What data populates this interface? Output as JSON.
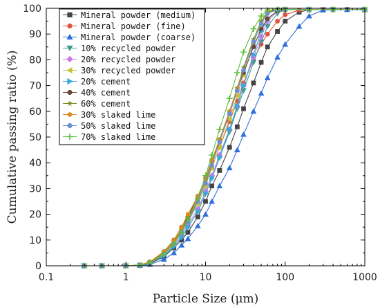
{
  "chart_data": {
    "type": "scatter",
    "title": "",
    "xlabel": "Particle Size (μm)",
    "ylabel": "Cumulative passing ratio (%)",
    "xscale": "log",
    "xlim": [
      0.1,
      1000
    ],
    "ylim": [
      0,
      100
    ],
    "x_ticks": [
      "0.1",
      "1",
      "10",
      "100",
      "1000"
    ],
    "y_ticks": [
      "0",
      "10",
      "20",
      "30",
      "40",
      "50",
      "60",
      "70",
      "80",
      "90",
      "100"
    ],
    "grid": false,
    "legend_position": "top-left",
    "series": [
      {
        "name": "Mineral powder (medium)",
        "color": "#444444",
        "marker": "square",
        "points": [
          [
            0.3,
            0
          ],
          [
            0.5,
            0
          ],
          [
            1,
            0
          ],
          [
            1.5,
            0.2
          ],
          [
            2,
            0.8
          ],
          [
            3,
            3.5
          ],
          [
            4,
            7
          ],
          [
            5,
            10
          ],
          [
            6,
            13
          ],
          [
            8,
            19
          ],
          [
            10,
            25
          ],
          [
            12,
            31
          ],
          [
            15,
            37
          ],
          [
            20,
            46
          ],
          [
            25,
            54
          ],
          [
            30,
            61
          ],
          [
            40,
            71
          ],
          [
            50,
            79
          ],
          [
            60,
            85
          ],
          [
            80,
            91
          ],
          [
            100,
            95
          ],
          [
            150,
            98.5
          ],
          [
            200,
            99.5
          ],
          [
            300,
            99.5
          ],
          [
            600,
            99.5
          ],
          [
            1000,
            99.5
          ]
        ]
      },
      {
        "name": "Mineral powder (fine)",
        "color": "#e0513f",
        "marker": "circle",
        "points": [
          [
            0.3,
            0
          ],
          [
            0.5,
            0
          ],
          [
            1,
            0
          ],
          [
            1.5,
            0.3
          ],
          [
            2,
            1.5
          ],
          [
            3,
            5
          ],
          [
            4,
            9
          ],
          [
            5,
            14
          ],
          [
            6,
            18
          ],
          [
            8,
            25
          ],
          [
            10,
            32
          ],
          [
            12,
            38
          ],
          [
            15,
            46
          ],
          [
            20,
            56
          ],
          [
            25,
            64
          ],
          [
            30,
            71
          ],
          [
            40,
            80
          ],
          [
            50,
            86
          ],
          [
            60,
            90
          ],
          [
            80,
            95
          ],
          [
            100,
            97.5
          ],
          [
            150,
            99.3
          ],
          [
            200,
            99.5
          ],
          [
            300,
            99.5
          ],
          [
            600,
            99.5
          ],
          [
            1000,
            99.5
          ]
        ]
      },
      {
        "name": "Mineral powder (coarse)",
        "color": "#2f6fdc",
        "marker": "triangle",
        "points": [
          [
            0.3,
            0
          ],
          [
            0.5,
            0
          ],
          [
            1,
            0
          ],
          [
            1.5,
            0.1
          ],
          [
            2,
            0.5
          ],
          [
            3,
            2.5
          ],
          [
            4,
            5
          ],
          [
            5,
            8
          ],
          [
            6,
            10.5
          ],
          [
            8,
            15.5
          ],
          [
            10,
            20
          ],
          [
            12,
            25
          ],
          [
            15,
            31
          ],
          [
            20,
            38
          ],
          [
            25,
            45
          ],
          [
            30,
            51
          ],
          [
            40,
            60
          ],
          [
            50,
            67
          ],
          [
            60,
            73
          ],
          [
            80,
            81
          ],
          [
            100,
            86
          ],
          [
            150,
            93
          ],
          [
            200,
            97
          ],
          [
            300,
            99.3
          ],
          [
            600,
            99.5
          ],
          [
            1000,
            99.5
          ]
        ]
      },
      {
        "name": "10% recycled powder",
        "color": "#3c9b8c",
        "marker": "triangle-down",
        "points": [
          [
            0.3,
            0
          ],
          [
            0.5,
            0
          ],
          [
            1,
            0
          ],
          [
            1.5,
            0.2
          ],
          [
            2,
            1
          ],
          [
            3,
            4
          ],
          [
            4,
            7.5
          ],
          [
            5,
            11
          ],
          [
            6,
            15
          ],
          [
            8,
            21
          ],
          [
            10,
            28
          ],
          [
            12,
            34
          ],
          [
            15,
            42
          ],
          [
            20,
            52
          ],
          [
            25,
            61
          ],
          [
            30,
            68
          ],
          [
            40,
            79
          ],
          [
            50,
            87
          ],
          [
            60,
            93
          ],
          [
            80,
            98
          ],
          [
            100,
            99.5
          ],
          [
            200,
            99.5
          ],
          [
            400,
            99.5
          ],
          [
            1000,
            99.5
          ]
        ]
      },
      {
        "name": "20% recycled powder",
        "color": "#c879e8",
        "marker": "diamond",
        "points": [
          [
            0.3,
            0
          ],
          [
            0.5,
            0
          ],
          [
            1,
            0
          ],
          [
            1.5,
            0.2
          ],
          [
            2,
            1
          ],
          [
            3,
            4.5
          ],
          [
            4,
            8
          ],
          [
            5,
            12
          ],
          [
            6,
            16
          ],
          [
            8,
            22
          ],
          [
            10,
            29
          ],
          [
            12,
            35
          ],
          [
            15,
            43
          ],
          [
            20,
            53
          ],
          [
            25,
            62
          ],
          [
            30,
            70
          ],
          [
            40,
            81
          ],
          [
            50,
            89
          ],
          [
            60,
            95
          ],
          [
            80,
            99
          ],
          [
            100,
            99.5
          ],
          [
            200,
            99.5
          ],
          [
            400,
            99.5
          ],
          [
            1000,
            99.5
          ]
        ]
      },
      {
        "name": "30% recycled powder",
        "color": "#c8c23a",
        "marker": "triangle-left",
        "points": [
          [
            0.3,
            0
          ],
          [
            0.5,
            0
          ],
          [
            1,
            0
          ],
          [
            1.5,
            0.3
          ],
          [
            2,
            1.2
          ],
          [
            3,
            5
          ],
          [
            4,
            9
          ],
          [
            5,
            13
          ],
          [
            6,
            17
          ],
          [
            8,
            24
          ],
          [
            10,
            31
          ],
          [
            12,
            38
          ],
          [
            15,
            46
          ],
          [
            20,
            57
          ],
          [
            25,
            66
          ],
          [
            30,
            74
          ],
          [
            40,
            86
          ],
          [
            50,
            95
          ],
          [
            60,
            99
          ],
          [
            80,
            99.5
          ],
          [
            100,
            99.5
          ],
          [
            200,
            99.5
          ],
          [
            400,
            99.5
          ],
          [
            1000,
            99.5
          ]
        ]
      },
      {
        "name": "20% cement",
        "color": "#35a8e0",
        "marker": "triangle-right",
        "points": [
          [
            0.3,
            0
          ],
          [
            0.5,
            0
          ],
          [
            1,
            0
          ],
          [
            1.5,
            0.2
          ],
          [
            2,
            1
          ],
          [
            3,
            4
          ],
          [
            4,
            7.5
          ],
          [
            5,
            11
          ],
          [
            6,
            15
          ],
          [
            8,
            21
          ],
          [
            10,
            28
          ],
          [
            12,
            34
          ],
          [
            15,
            42
          ],
          [
            20,
            53
          ],
          [
            25,
            62
          ],
          [
            30,
            70
          ],
          [
            40,
            82
          ],
          [
            50,
            91
          ],
          [
            60,
            96
          ],
          [
            80,
            99
          ],
          [
            100,
            99.5
          ],
          [
            200,
            99.5
          ],
          [
            400,
            99.5
          ],
          [
            1000,
            99.5
          ]
        ]
      },
      {
        "name": "40% cement",
        "color": "#6b4638",
        "marker": "circle",
        "points": [
          [
            0.3,
            0
          ],
          [
            0.5,
            0
          ],
          [
            1,
            0
          ],
          [
            1.5,
            0.3
          ],
          [
            2,
            1.5
          ],
          [
            3,
            5.5
          ],
          [
            4,
            10
          ],
          [
            5,
            15
          ],
          [
            6,
            19
          ],
          [
            8,
            27
          ],
          [
            10,
            34
          ],
          [
            12,
            41
          ],
          [
            15,
            49
          ],
          [
            20,
            59
          ],
          [
            25,
            68
          ],
          [
            30,
            75
          ],
          [
            40,
            85
          ],
          [
            50,
            92
          ],
          [
            60,
            96
          ],
          [
            80,
            99
          ],
          [
            100,
            99.5
          ],
          [
            200,
            99.5
          ],
          [
            400,
            99.5
          ],
          [
            1000,
            99.5
          ]
        ]
      },
      {
        "name": "60% cement",
        "color": "#7a8a14",
        "marker": "star",
        "points": [
          [
            0.3,
            0
          ],
          [
            0.5,
            0
          ],
          [
            1,
            0
          ],
          [
            1.5,
            0.3
          ],
          [
            2,
            1.3
          ],
          [
            3,
            5
          ],
          [
            4,
            9.5
          ],
          [
            5,
            14
          ],
          [
            6,
            18.5
          ],
          [
            8,
            26
          ],
          [
            10,
            33
          ],
          [
            12,
            40
          ],
          [
            15,
            49
          ],
          [
            20,
            60
          ],
          [
            25,
            69
          ],
          [
            30,
            77
          ],
          [
            40,
            88
          ],
          [
            50,
            95
          ],
          [
            60,
            98.5
          ],
          [
            80,
            99.5
          ],
          [
            100,
            99.5
          ],
          [
            200,
            99.5
          ],
          [
            400,
            99.5
          ],
          [
            1000,
            99.5
          ]
        ]
      },
      {
        "name": "30% slaked lime",
        "color": "#e08a1c",
        "marker": "hexagon",
        "points": [
          [
            0.3,
            0
          ],
          [
            0.5,
            0
          ],
          [
            1,
            0
          ],
          [
            1.5,
            0.3
          ],
          [
            2,
            1.5
          ],
          [
            3,
            5.5
          ],
          [
            4,
            10
          ],
          [
            5,
            15
          ],
          [
            6,
            20
          ],
          [
            8,
            27
          ],
          [
            10,
            34
          ],
          [
            12,
            41
          ],
          [
            15,
            49
          ],
          [
            20,
            60
          ],
          [
            25,
            69
          ],
          [
            30,
            76
          ],
          [
            40,
            87
          ],
          [
            50,
            94
          ],
          [
            60,
            98
          ],
          [
            80,
            99.5
          ],
          [
            100,
            99.5
          ],
          [
            200,
            99.5
          ],
          [
            400,
            99.5
          ],
          [
            1000,
            99.5
          ]
        ]
      },
      {
        "name": "50% slaked lime",
        "color": "#6d8fd6",
        "marker": "circle",
        "points": [
          [
            0.3,
            0
          ],
          [
            0.5,
            0
          ],
          [
            1,
            0
          ],
          [
            1.5,
            0.2
          ],
          [
            2,
            1
          ],
          [
            3,
            4.5
          ],
          [
            4,
            8.5
          ],
          [
            5,
            13
          ],
          [
            6,
            17
          ],
          [
            8,
            25
          ],
          [
            10,
            32
          ],
          [
            12,
            39
          ],
          [
            15,
            48
          ],
          [
            20,
            59
          ],
          [
            25,
            68
          ],
          [
            30,
            76
          ],
          [
            40,
            87
          ],
          [
            50,
            94
          ],
          [
            60,
            98
          ],
          [
            80,
            99.5
          ],
          [
            100,
            99.5
          ],
          [
            200,
            99.5
          ],
          [
            400,
            99.5
          ],
          [
            1000,
            99.5
          ]
        ]
      },
      {
        "name": "70% slaked lime",
        "color": "#5cbf3a",
        "marker": "plus",
        "points": [
          [
            0.3,
            0
          ],
          [
            0.5,
            0
          ],
          [
            1,
            0
          ],
          [
            1.5,
            0.2
          ],
          [
            2,
            1
          ],
          [
            3,
            4.5
          ],
          [
            4,
            8.5
          ],
          [
            5,
            13
          ],
          [
            6,
            18
          ],
          [
            8,
            26
          ],
          [
            10,
            35
          ],
          [
            12,
            43
          ],
          [
            15,
            53
          ],
          [
            20,
            65
          ],
          [
            25,
            75
          ],
          [
            30,
            83
          ],
          [
            40,
            92
          ],
          [
            50,
            97
          ],
          [
            60,
            99.3
          ],
          [
            80,
            99.5
          ],
          [
            100,
            99.5
          ],
          [
            200,
            99.5
          ],
          [
            400,
            99.5
          ],
          [
            1000,
            99.5
          ]
        ]
      }
    ]
  }
}
